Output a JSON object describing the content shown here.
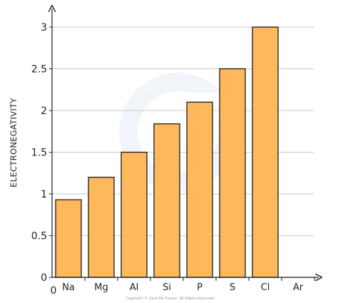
{
  "chart_data": {
    "type": "bar",
    "categories": [
      "Na",
      "Mg",
      "Al",
      "Si",
      "P",
      "S",
      "Cl",
      "Ar"
    ],
    "values": [
      0.93,
      1.2,
      1.5,
      1.84,
      2.1,
      2.5,
      3.0,
      null
    ],
    "ylabel": "ELECTRONEGATIVITY",
    "xlabel": "",
    "ylim": [
      0,
      3.0
    ],
    "yticks": [
      0,
      0.5,
      1,
      1.5,
      2,
      2.5,
      3
    ],
    "ytick_labels": [
      "0",
      "0.5",
      "1",
      "1.5",
      "2",
      "2.5",
      "3"
    ],
    "origin_label": "0",
    "grid": true,
    "bar_color": "#ffb85c",
    "bar_edge_color": "#1a1a1a",
    "grid_color": "#c8c8c8",
    "axis_color": "#1a1a1a",
    "footer": "Copyright © Save My Exams. All Rights Reserved"
  }
}
